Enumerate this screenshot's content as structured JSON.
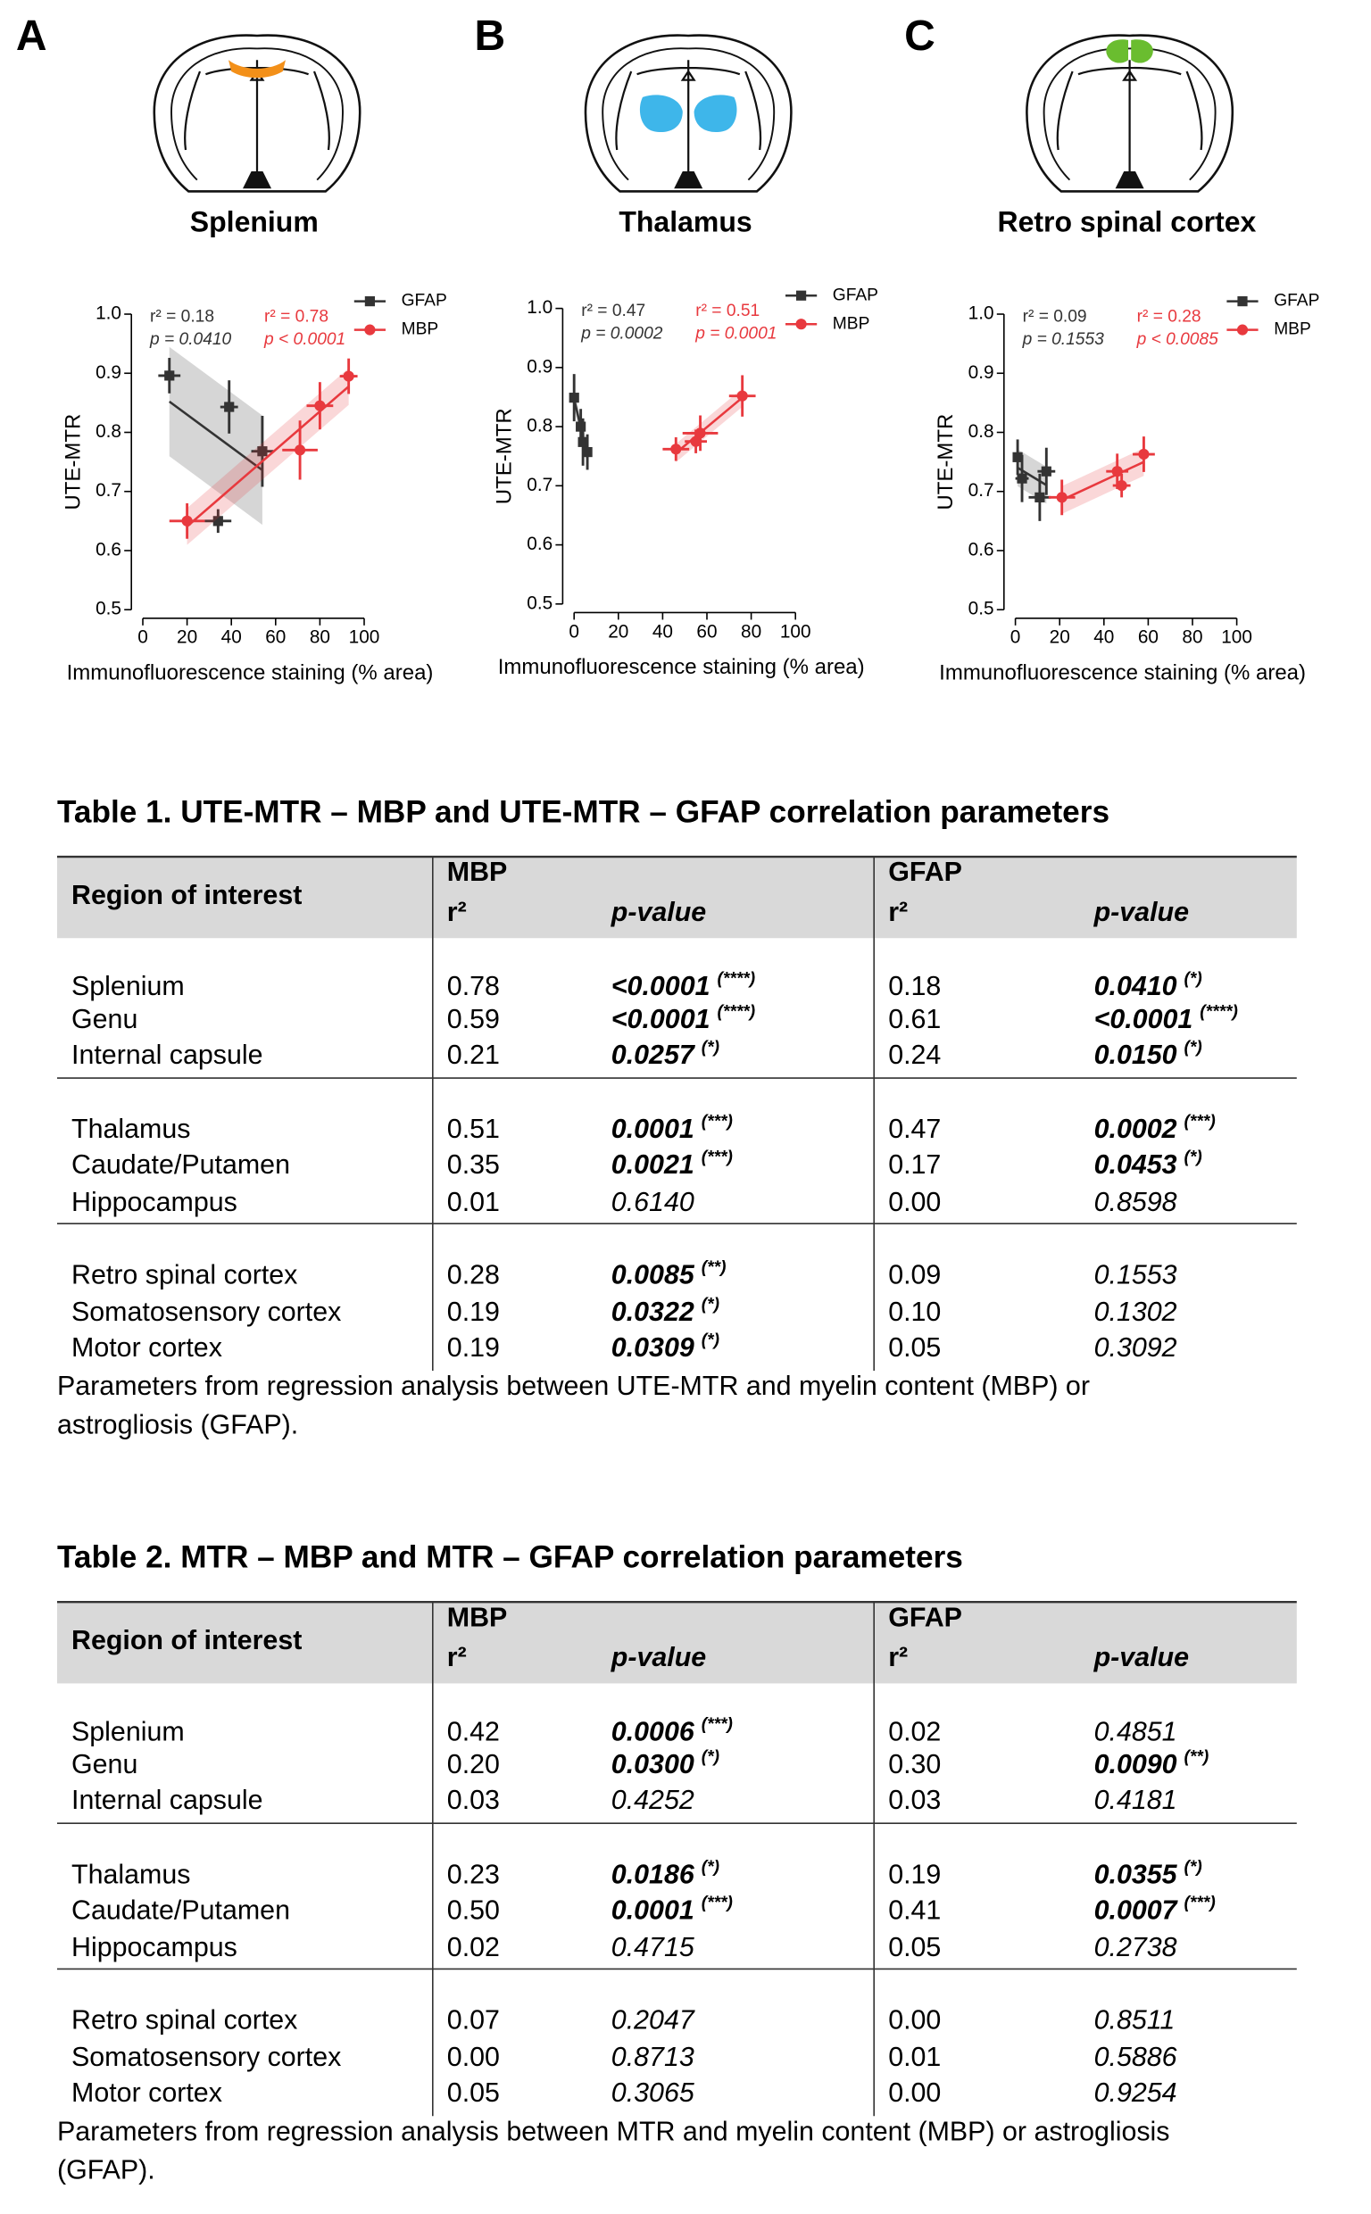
{
  "chart_data": [
    {
      "type": "scatter",
      "panel": "A",
      "title": "Splenium",
      "xlabel": "Immunofluorescence staining (% area)",
      "ylabel": "UTE-MTR",
      "xlim": [
        0,
        100
      ],
      "xticks": [
        0,
        20,
        40,
        60,
        80,
        100
      ],
      "ylim": [
        0.5,
        1.0
      ],
      "yticks": [
        0.5,
        0.6,
        0.7,
        0.8,
        0.9,
        {
          "value": 1,
          "label": "1.0"
        }
      ],
      "series": [
        {
          "name": "GFAP",
          "color": "#333333",
          "marker": "square",
          "x": [
            12,
            39,
            54,
            34
          ],
          "values": [
            0.896,
            0.843,
            0.768,
            0.65
          ],
          "x_err": [
            5,
            4,
            5,
            6
          ],
          "y_err": [
            0.03,
            0.045,
            0.06,
            0.02
          ],
          "r2_label": "r² = 0.18",
          "p_label": "p = 0.0410"
        },
        {
          "name": "MBP",
          "color": "#e8393e",
          "marker": "circle",
          "x": [
            20,
            71,
            80,
            93
          ],
          "values": [
            0.65,
            0.77,
            0.845,
            0.895
          ],
          "x_err": [
            8,
            8,
            6,
            4
          ],
          "y_err": [
            0.03,
            0.05,
            0.04,
            0.03
          ],
          "r2_label": "r² = 0.78",
          "p_label": "p < 0.0001"
        }
      ]
    },
    {
      "type": "scatter",
      "panel": "B",
      "title": "Thalamus",
      "xlabel": "Immunofluorescence staining (% area)",
      "ylabel": "UTE-MTR",
      "xlim": [
        0,
        100
      ],
      "xticks": [
        0,
        20,
        40,
        60,
        80,
        100
      ],
      "ylim": [
        0.5,
        1.0
      ],
      "yticks": [
        0.5,
        0.6,
        0.7,
        0.8,
        0.9,
        {
          "value": 1,
          "label": "1.0"
        }
      ],
      "series": [
        {
          "name": "GFAP",
          "color": "#333333",
          "marker": "square",
          "x": [
            0,
            3,
            4,
            6
          ],
          "values": [
            0.849,
            0.8,
            0.774,
            0.757
          ],
          "x_err": [
            1,
            2,
            2,
            2
          ],
          "y_err": [
            0.04,
            0.03,
            0.04,
            0.03
          ],
          "r2_label": "r² = 0.47",
          "p_label": "p = 0.0002"
        },
        {
          "name": "MBP",
          "color": "#e8393e",
          "marker": "circle",
          "x": [
            46,
            55,
            57,
            76
          ],
          "values": [
            0.762,
            0.775,
            0.789,
            0.852
          ],
          "x_err": [
            6,
            5,
            8,
            6
          ],
          "y_err": [
            0.02,
            0.02,
            0.03,
            0.035
          ],
          "r2_label": "r² = 0.51",
          "p_label": "p = 0.0001"
        }
      ]
    },
    {
      "type": "scatter",
      "panel": "C",
      "title": "Retro spinal cortex",
      "xlabel": "Immunofluorescence staining (% area)",
      "ylabel": "UTE-MTR",
      "xlim": [
        0,
        100
      ],
      "xticks": [
        0,
        20,
        40,
        60,
        80,
        100
      ],
      "ylim": [
        0.5,
        1.0
      ],
      "yticks": [
        0.5,
        0.6,
        0.7,
        0.8,
        0.9,
        {
          "value": 1,
          "label": "1.0"
        }
      ],
      "series": [
        {
          "name": "GFAP",
          "color": "#333333",
          "marker": "square",
          "x": [
            1,
            3,
            11,
            14
          ],
          "values": [
            0.758,
            0.722,
            0.69,
            0.734
          ],
          "x_err": [
            2,
            3,
            5,
            4
          ],
          "y_err": [
            0.03,
            0.04,
            0.04,
            0.04
          ],
          "r2_label": "r² = 0.09",
          "p_label": "p = 0.1553"
        },
        {
          "name": "MBP",
          "color": "#e8393e",
          "marker": "circle",
          "x": [
            21,
            46,
            48,
            58
          ],
          "values": [
            0.69,
            0.734,
            0.71,
            0.763
          ],
          "x_err": [
            6,
            5,
            4,
            5
          ],
          "y_err": [
            0.03,
            0.03,
            0.02,
            0.03
          ],
          "r2_label": "r² = 0.28",
          "p_label": "p < 0.0085"
        }
      ]
    }
  ],
  "tables": [
    {
      "title": "Table 1. UTE-MTR – MBP and UTE-MTR – GFAP correlation parameters",
      "header": {
        "region": "Region of interest",
        "groups": [
          "MBP",
          "GFAP"
        ],
        "r2": "r²",
        "p": "p-value"
      },
      "groups": [
        [
          [
            "Splenium",
            "0.78",
            "<0.0001",
            "(****)",
            "0.18",
            "0.0410",
            "(*)"
          ],
          [
            "Genu",
            "0.59",
            "<0.0001",
            "(****)",
            "0.61",
            "<0.0001",
            "(****)"
          ],
          [
            "Internal capsule",
            "0.21",
            "0.0257",
            "(*)",
            "0.24",
            "0.0150",
            "(*)"
          ]
        ],
        [
          [
            "Thalamus",
            "0.51",
            "0.0001",
            "(***)",
            "0.47",
            "0.0002",
            "(***)"
          ],
          [
            "Caudate/Putamen",
            "0.35",
            "0.0021",
            "(***)",
            "0.17",
            "0.0453",
            "(*)"
          ],
          [
            "Hippocampus",
            "0.01",
            "0.6140",
            null,
            "0.00",
            "0.8598",
            null
          ]
        ],
        [
          [
            "Retro spinal cortex",
            "0.28",
            "0.0085",
            "(**)",
            "0.09",
            "0.1553",
            null
          ],
          [
            "Somatosensory cortex",
            "0.19",
            "0.0322",
            "(*)",
            "0.10",
            "0.1302",
            null
          ],
          [
            "Motor cortex",
            "0.19",
            "0.0309",
            "(*)",
            "0.05",
            "0.3092",
            null
          ]
        ]
      ],
      "caption": [
        "Parameters from regression analysis between UTE-MTR and myelin content (MBP) or",
        "astrogliosis (GFAP)."
      ]
    },
    {
      "title": "Table 2. MTR – MBP and MTR – GFAP correlation parameters",
      "header": {
        "region": "Region of interest",
        "groups": [
          "MBP",
          "GFAP"
        ],
        "r2": "r²",
        "p": "p-value"
      },
      "groups": [
        [
          [
            "Splenium",
            "0.42",
            "0.0006",
            "(***)",
            "0.02",
            "0.4851",
            null
          ],
          [
            "Genu",
            "0.20",
            "0.0300",
            "(*)",
            "0.30",
            "0.0090",
            "(**)"
          ],
          [
            "Internal capsule",
            "0.03",
            "0.4252",
            null,
            "0.03",
            "0.4181",
            null
          ]
        ],
        [
          [
            "Thalamus",
            "0.23",
            "0.0186",
            "(*)",
            "0.19",
            "0.0355",
            "(*)"
          ],
          [
            "Caudate/Putamen",
            "0.50",
            "0.0001",
            "(***)",
            "0.41",
            "0.0007",
            "(***)"
          ],
          [
            "Hippocampus",
            "0.02",
            "0.4715",
            null,
            "0.05",
            "0.2738",
            null
          ]
        ],
        [
          [
            "Retro spinal cortex",
            "0.07",
            "0.2047",
            null,
            "0.00",
            "0.8511",
            null
          ],
          [
            "Somatosensory cortex",
            "0.00",
            "0.8713",
            null,
            "0.01",
            "0.5886",
            null
          ],
          [
            "Motor cortex",
            "0.05",
            "0.3065",
            null,
            "0.00",
            "0.9254",
            null
          ]
        ]
      ],
      "caption": [
        "Parameters from regression analysis between MTR and myelin content (MBP) or astrogliosis",
        "(GFAP)."
      ]
    }
  ]
}
